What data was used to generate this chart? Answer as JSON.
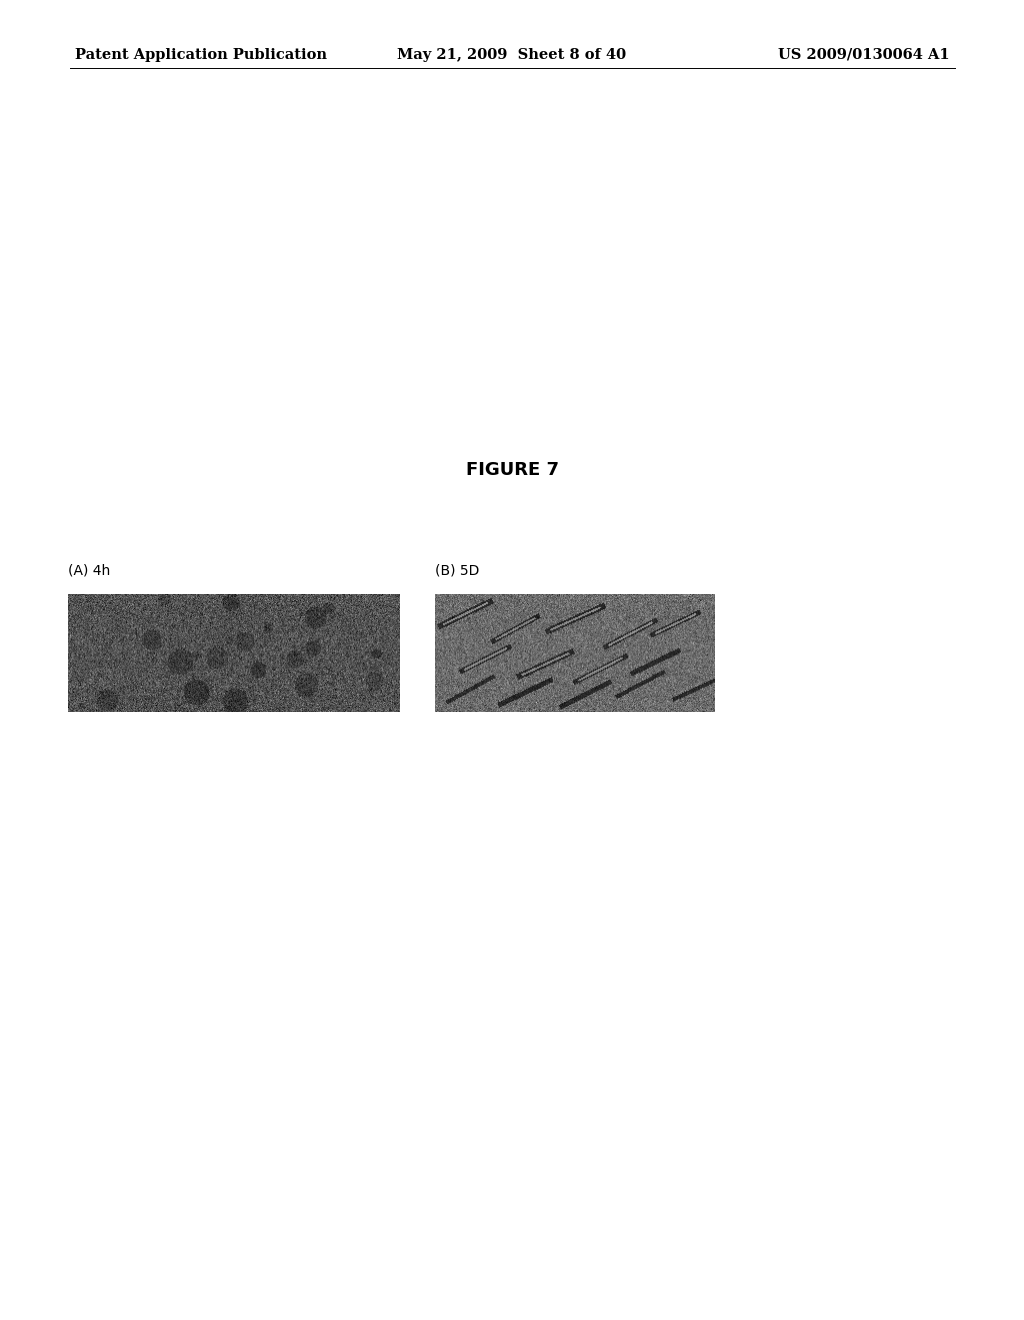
{
  "background_color": "#ffffff",
  "header_left": "Patent Application Publication",
  "header_center": "May 21, 2009  Sheet 8 of 40",
  "header_right": "US 2009/0130064 A1",
  "figure_title": "FIGURE 7",
  "panel_A_label": "(A) 4h",
  "panel_B_label": "(B) 5D",
  "label_fontsize": 10,
  "header_fontsize": 10.5,
  "figure_title_fontsize": 13
}
